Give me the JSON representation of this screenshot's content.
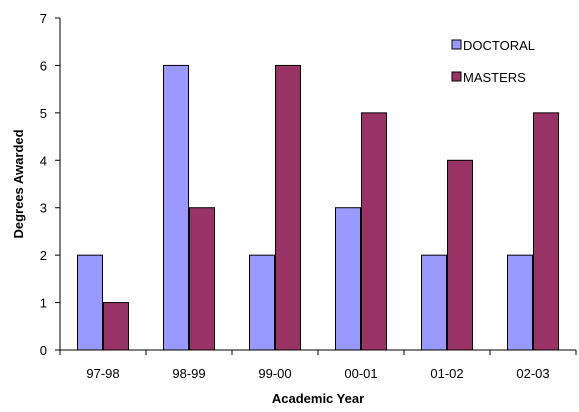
{
  "chart_data": {
    "type": "bar",
    "categories": [
      "97-98",
      "98-99",
      "99-00",
      "00-01",
      "01-02",
      "02-03"
    ],
    "series": [
      {
        "name": "DOCTORAL",
        "values": [
          2,
          6,
          2,
          3,
          2,
          2
        ],
        "color": "#9999ff"
      },
      {
        "name": "MASTERS",
        "values": [
          1,
          3,
          6,
          5,
          4,
          5
        ],
        "color": "#993366"
      }
    ],
    "title": "",
    "xlabel": "Academic Year",
    "ylabel": "Degrees Awarded",
    "ylim": [
      0,
      7
    ],
    "yticks": [
      "0",
      "1",
      "2",
      "3",
      "4",
      "5",
      "6",
      "7"
    ],
    "grid": false,
    "legend": "top-right"
  }
}
